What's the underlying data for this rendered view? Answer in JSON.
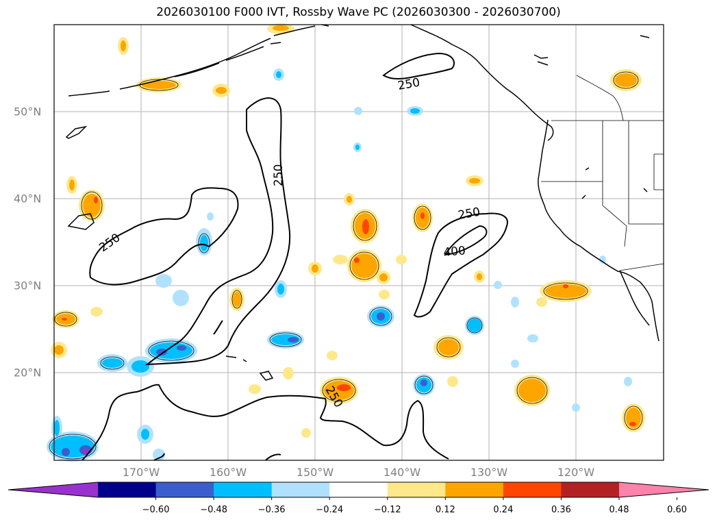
{
  "title": "2026030100 F000 IVT, Rossby Wave PC (2026030300 - 2026030700)",
  "lon_labels": [
    "170°W",
    "160°W",
    "150°W",
    "140°W",
    "130°W",
    "120°W"
  ],
  "lat_labels": [
    "50°N",
    "40°N",
    "30°N",
    "20°N"
  ],
  "contour_labels": [
    "250",
    "250",
    "250",
    "250",
    "400",
    "250"
  ],
  "colorbar": {
    "ticks": [
      "−0.60",
      "−0.48",
      "−0.36",
      "−0.24",
      "−0.12",
      "0.12",
      "0.24",
      "0.36",
      "0.48",
      "0.60"
    ],
    "colors": [
      "#9932cc",
      "#00008b",
      "#3a5fcd",
      "#00bfff",
      "#b0e2ff",
      "#ffffff",
      "#ffe88a",
      "#ffa500",
      "#ff4500",
      "#b22222",
      "#ff82ab"
    ]
  },
  "colors": {
    "coast": "#000000",
    "grid": "#b0b0b0",
    "tick_label": "#808080"
  }
}
